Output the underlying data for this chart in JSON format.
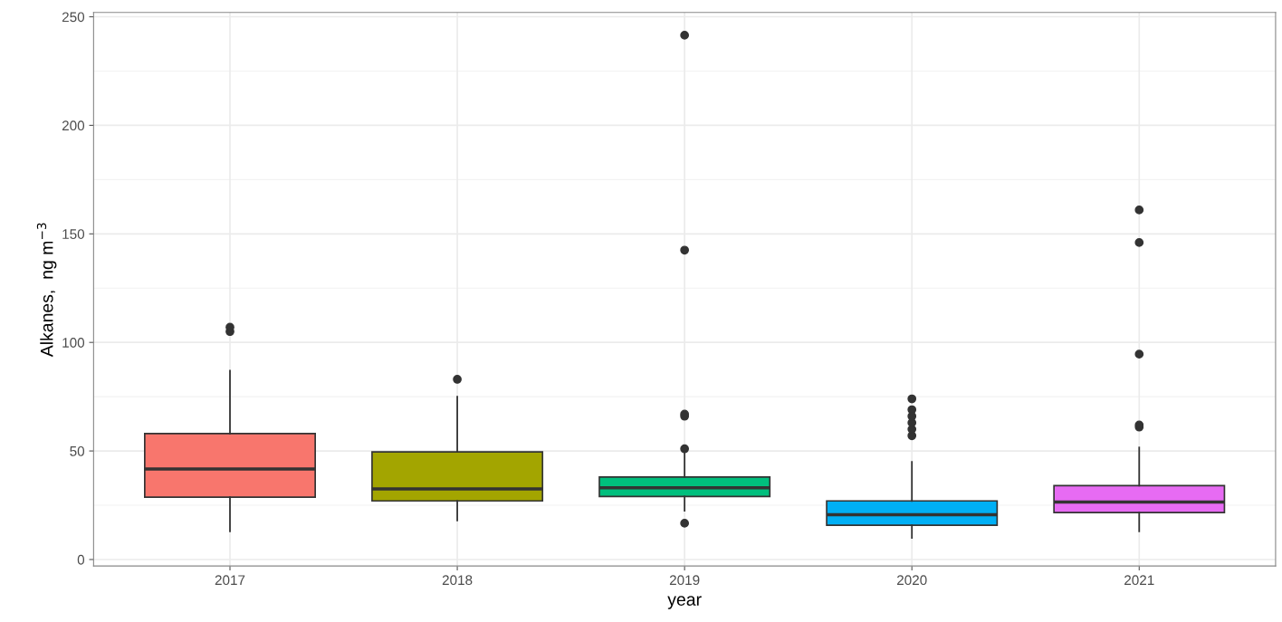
{
  "chart_data": {
    "type": "box",
    "xlabel": "year",
    "ylabel": "Alkanes,  ng m$^{−3}$",
    "categories": [
      "2017",
      "2018",
      "2019",
      "2020",
      "2021"
    ],
    "colors": [
      "#f8766d",
      "#a3a500",
      "#00bf7d",
      "#00b0f6",
      "#e76bf3"
    ],
    "boxes": [
      {
        "low": 13,
        "q1": 28.7,
        "median": 41.7,
        "q3": 58,
        "high": 87,
        "outliers": [
          105,
          107
        ]
      },
      {
        "low": 18,
        "q1": 27,
        "median": 32.5,
        "q3": 49.6,
        "high": 75,
        "outliers": [
          83
        ]
      },
      {
        "low": 22.5,
        "q1": 29,
        "median": 33,
        "q3": 38,
        "high": 50,
        "outliers": [
          16.7,
          51,
          66,
          67,
          142.5,
          241.5
        ]
      },
      {
        "low": 10,
        "q1": 15.8,
        "median": 20.6,
        "q3": 27,
        "high": 45,
        "outliers": [
          57,
          60,
          63,
          66,
          69,
          74
        ]
      },
      {
        "low": 13,
        "q1": 21.6,
        "median": 26.5,
        "q3": 34,
        "high": 51.6,
        "outliers": [
          61,
          62,
          94.6,
          146,
          161
        ]
      }
    ],
    "ylim": [
      -3,
      252
    ],
    "yticks": [
      0,
      50,
      100,
      150,
      200,
      250
    ],
    "grid": true
  }
}
